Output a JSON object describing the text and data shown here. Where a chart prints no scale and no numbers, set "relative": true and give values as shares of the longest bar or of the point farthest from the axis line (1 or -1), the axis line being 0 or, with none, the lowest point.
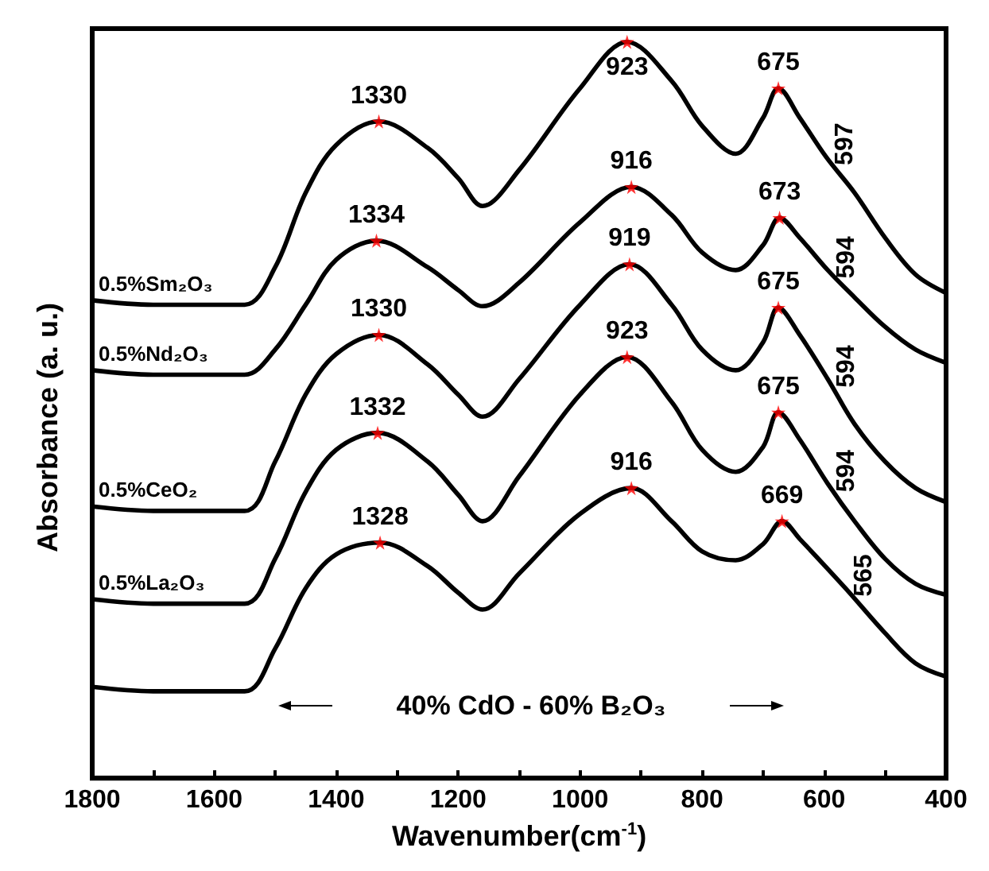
{
  "chart_data": {
    "type": "line",
    "relative": true,
    "xlabel": "Wavenumber(cm$^{-1}$)",
    "ylabel": "Absorbance (a. u.)",
    "xlim": [
      1800,
      400
    ],
    "xticks": [
      1800,
      {
        "value": 1700,
        "label": null
      },
      1600,
      {
        "value": 1500,
        "label": null
      },
      1400,
      {
        "value": 1300,
        "label": null
      },
      1200,
      {
        "value": 1100,
        "label": null
      },
      1000,
      {
        "value": 900,
        "label": null
      },
      800,
      {
        "value": 700,
        "label": null
      },
      600,
      {
        "value": 500,
        "label": null
      },
      400
    ],
    "grid": false,
    "legend": false,
    "marker": "none",
    "line_style": "solid",
    "series": [
      {
        "name": "0.5%Sm₂O₃",
        "color": "#000000",
        "x": [
          1800,
          1700,
          1550,
          1500,
          1450,
          1400,
          1330,
          1250,
          1200,
          1160,
          1100,
          1000,
          923,
          850,
          800,
          745,
          700,
          675,
          640,
          597,
          550,
          500,
          450,
          400
        ],
        "values": [
          0.649,
          0.643,
          0.643,
          0.694,
          0.795,
          0.86,
          0.892,
          0.856,
          0.815,
          0.777,
          0.826,
          0.937,
          1.0,
          0.947,
          0.886,
          0.848,
          0.897,
          0.937,
          0.897,
          0.844,
          0.795,
          0.734,
          0.684,
          0.659
        ]
      },
      {
        "name": "0.5%Nd₂O₃",
        "color": "#000000",
        "x": [
          1800,
          1700,
          1550,
          1500,
          1450,
          1400,
          1334,
          1250,
          1200,
          1160,
          1100,
          1000,
          916,
          850,
          800,
          745,
          700,
          673,
          640,
          594,
          550,
          500,
          450,
          400
        ],
        "values": [
          0.554,
          0.548,
          0.548,
          0.582,
          0.643,
          0.704,
          0.73,
          0.694,
          0.663,
          0.641,
          0.673,
          0.755,
          0.803,
          0.765,
          0.714,
          0.69,
          0.724,
          0.761,
          0.734,
          0.69,
          0.653,
          0.613,
          0.582,
          0.564
        ]
      },
      {
        "name": "0.5%CeO₂",
        "color": "#000000",
        "x": [
          1800,
          1700,
          1550,
          1500,
          1450,
          1400,
          1330,
          1250,
          1200,
          1160,
          1100,
          1000,
          919,
          850,
          800,
          745,
          700,
          675,
          640,
          594,
          550,
          500,
          450,
          400
        ],
        "values": [
          0.369,
          0.363,
          0.363,
          0.43,
          0.521,
          0.576,
          0.602,
          0.562,
          0.521,
          0.491,
          0.542,
          0.643,
          0.698,
          0.643,
          0.582,
          0.554,
          0.592,
          0.639,
          0.602,
          0.542,
          0.481,
          0.43,
          0.394,
          0.375
        ]
      },
      {
        "name": "0.5%La₂O₃",
        "color": "#000000",
        "x": [
          1800,
          1700,
          1550,
          1500,
          1450,
          1400,
          1332,
          1250,
          1200,
          1160,
          1100,
          1000,
          923,
          850,
          800,
          745,
          700,
          675,
          640,
          594,
          550,
          500,
          450,
          400
        ],
        "values": [
          0.243,
          0.237,
          0.237,
          0.298,
          0.389,
          0.446,
          0.469,
          0.43,
          0.385,
          0.349,
          0.41,
          0.521,
          0.572,
          0.511,
          0.446,
          0.416,
          0.45,
          0.497,
          0.46,
          0.4,
          0.349,
          0.298,
          0.264,
          0.249
        ]
      },
      {
        "color": "#000000",
        "x": [
          1800,
          1700,
          1550,
          1500,
          1450,
          1400,
          1328,
          1250,
          1200,
          1160,
          1100,
          1000,
          916,
          850,
          800,
          745,
          700,
          669,
          640,
          565,
          500,
          450,
          400
        ],
        "values": [
          0.124,
          0.118,
          0.118,
          0.176,
          0.258,
          0.304,
          0.32,
          0.288,
          0.252,
          0.229,
          0.278,
          0.359,
          0.394,
          0.349,
          0.308,
          0.296,
          0.318,
          0.349,
          0.325,
          0.258,
          0.197,
          0.156,
          0.138
        ]
      },
      {
        "type": "scatter",
        "marker": "star",
        "color": "#ff0000",
        "x": [
          1330,
          923,
          675,
          1334,
          916,
          673,
          1330,
          919,
          675,
          1332,
          923,
          675,
          1328,
          916,
          669
        ],
        "values": [
          0.892,
          1.0,
          0.937,
          0.73,
          0.803,
          0.761,
          0.602,
          0.698,
          0.639,
          0.469,
          0.572,
          0.497,
          0.32,
          0.394,
          0.349
        ]
      }
    ],
    "annotations": [
      {
        "text": "1330",
        "x": 1330,
        "y": 0.892
      },
      {
        "text": "923",
        "x": 923,
        "y": 1.0
      },
      {
        "text": "675",
        "x": 675,
        "y": 0.937
      },
      {
        "text": "597",
        "x": 597,
        "y": 0.844
      },
      {
        "text": "1334",
        "x": 1334,
        "y": 0.73
      },
      {
        "text": "916",
        "x": 916,
        "y": 0.803
      },
      {
        "text": "673",
        "x": 673,
        "y": 0.761
      },
      {
        "text": "594",
        "x": 594,
        "y": 0.69
      },
      {
        "text": "1330",
        "x": 1330,
        "y": 0.602
      },
      {
        "text": "919",
        "x": 919,
        "y": 0.698
      },
      {
        "text": "675",
        "x": 675,
        "y": 0.639
      },
      {
        "text": "594",
        "x": 594,
        "y": 0.542
      },
      {
        "text": "1332",
        "x": 1332,
        "y": 0.469
      },
      {
        "text": "923",
        "x": 923,
        "y": 0.572
      },
      {
        "text": "675",
        "x": 675,
        "y": 0.497
      },
      {
        "text": "594",
        "x": 594,
        "y": 0.4
      },
      {
        "text": "1328",
        "x": 1328,
        "y": 0.32
      },
      {
        "text": "916",
        "x": 916,
        "y": 0.394
      },
      {
        "text": "669",
        "x": 669,
        "y": 0.349
      },
      {
        "text": "565",
        "x": 565,
        "y": 0.258
      },
      "40% CdO - 60% B₂O₃"
    ]
  }
}
